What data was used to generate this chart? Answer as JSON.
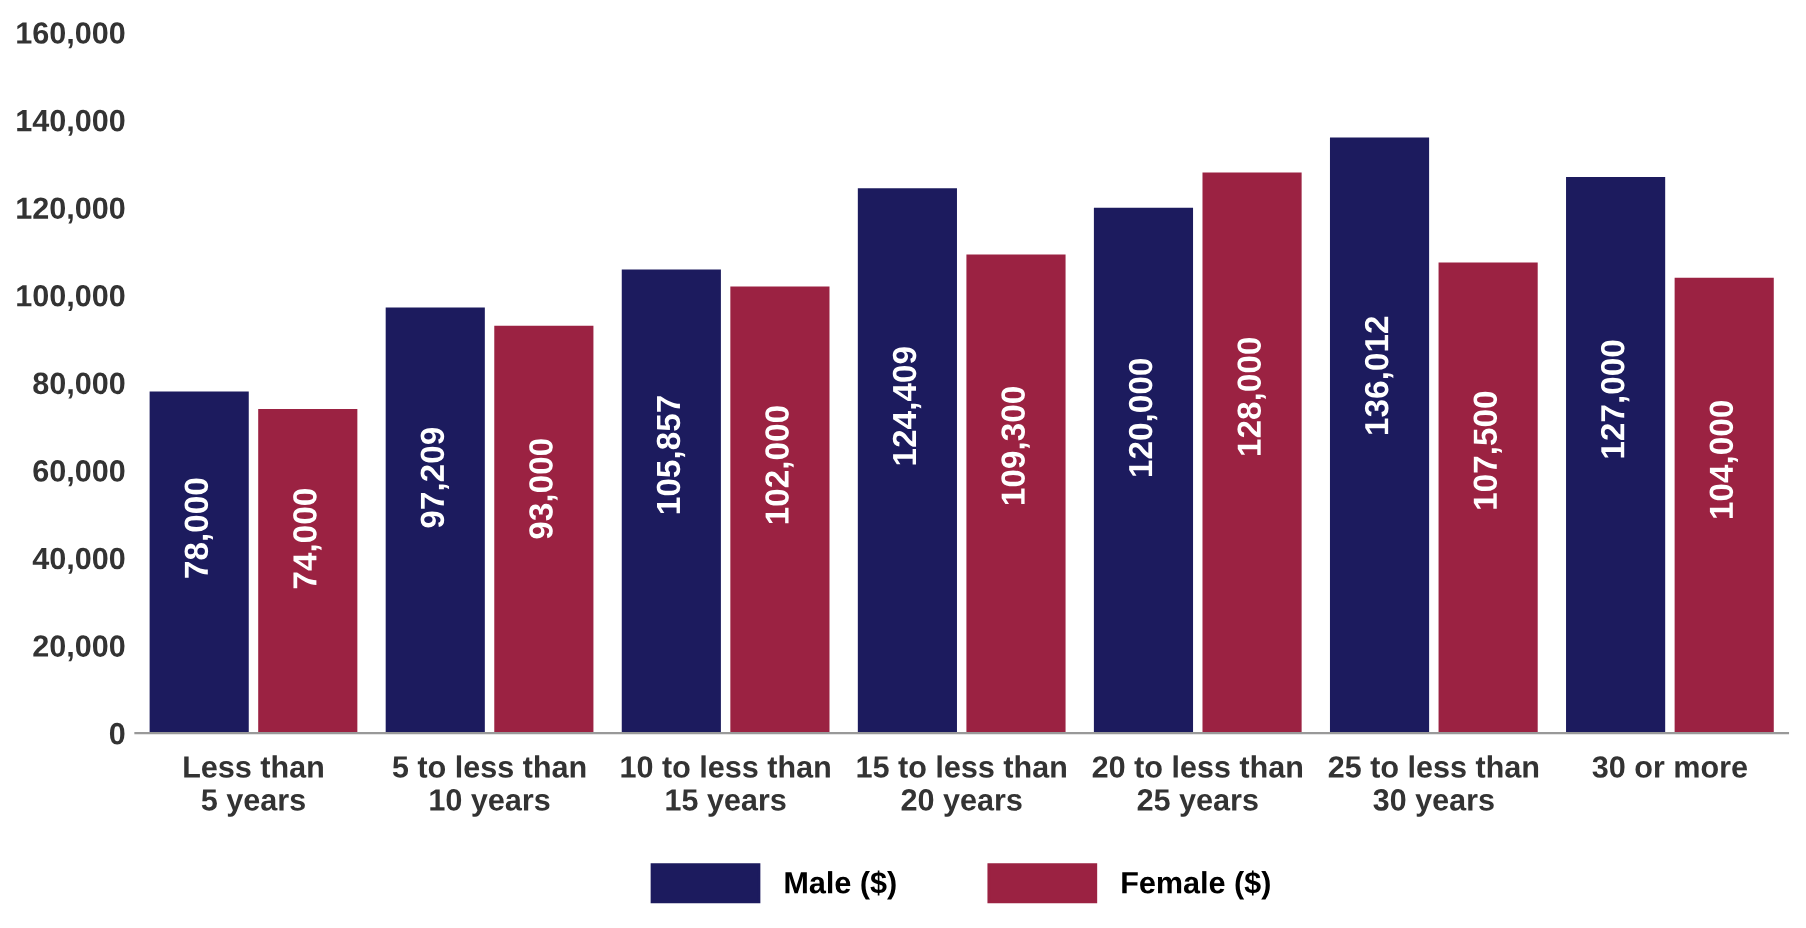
{
  "chart_data": {
    "type": "bar",
    "categories": [
      "Less than\n5 years",
      "5 to less than\n10 years",
      "10 to less than\n15 years",
      "15 to less than\n20 years",
      "20 to less than\n25 years",
      "25 to less than\n30 years",
      "30 or more"
    ],
    "series": [
      {
        "name": "Male ($)",
        "color": "#1c1b5e",
        "values": [
          78000,
          97209,
          105857,
          124409,
          120000,
          136012,
          127000
        ],
        "value_labels": [
          "78,000",
          "97,209",
          "105,857",
          "124,409",
          "120,000",
          "136,012",
          "127,000"
        ]
      },
      {
        "name": "Female ($)",
        "color": "#9b2242",
        "values": [
          74000,
          93000,
          102000,
          109300,
          128000,
          107500,
          104000
        ],
        "value_labels": [
          "74,000",
          "93,000",
          "102,000",
          "109,300",
          "128,000",
          "107,500",
          "104,000"
        ]
      }
    ],
    "ylim": [
      0,
      160000
    ],
    "yticks": [
      {
        "value": 0,
        "label": "0"
      },
      {
        "value": 20000,
        "label": "20,000"
      },
      {
        "value": 40000,
        "label": "40,000"
      },
      {
        "value": 60000,
        "label": "60,000"
      },
      {
        "value": 80000,
        "label": "80,000"
      },
      {
        "value": 100000,
        "label": "100,000"
      },
      {
        "value": 120000,
        "label": "120,000"
      },
      {
        "value": 140000,
        "label": "140,000"
      },
      {
        "value": 160000,
        "label": "160,000"
      }
    ],
    "grid": false,
    "legend": "bottom"
  }
}
